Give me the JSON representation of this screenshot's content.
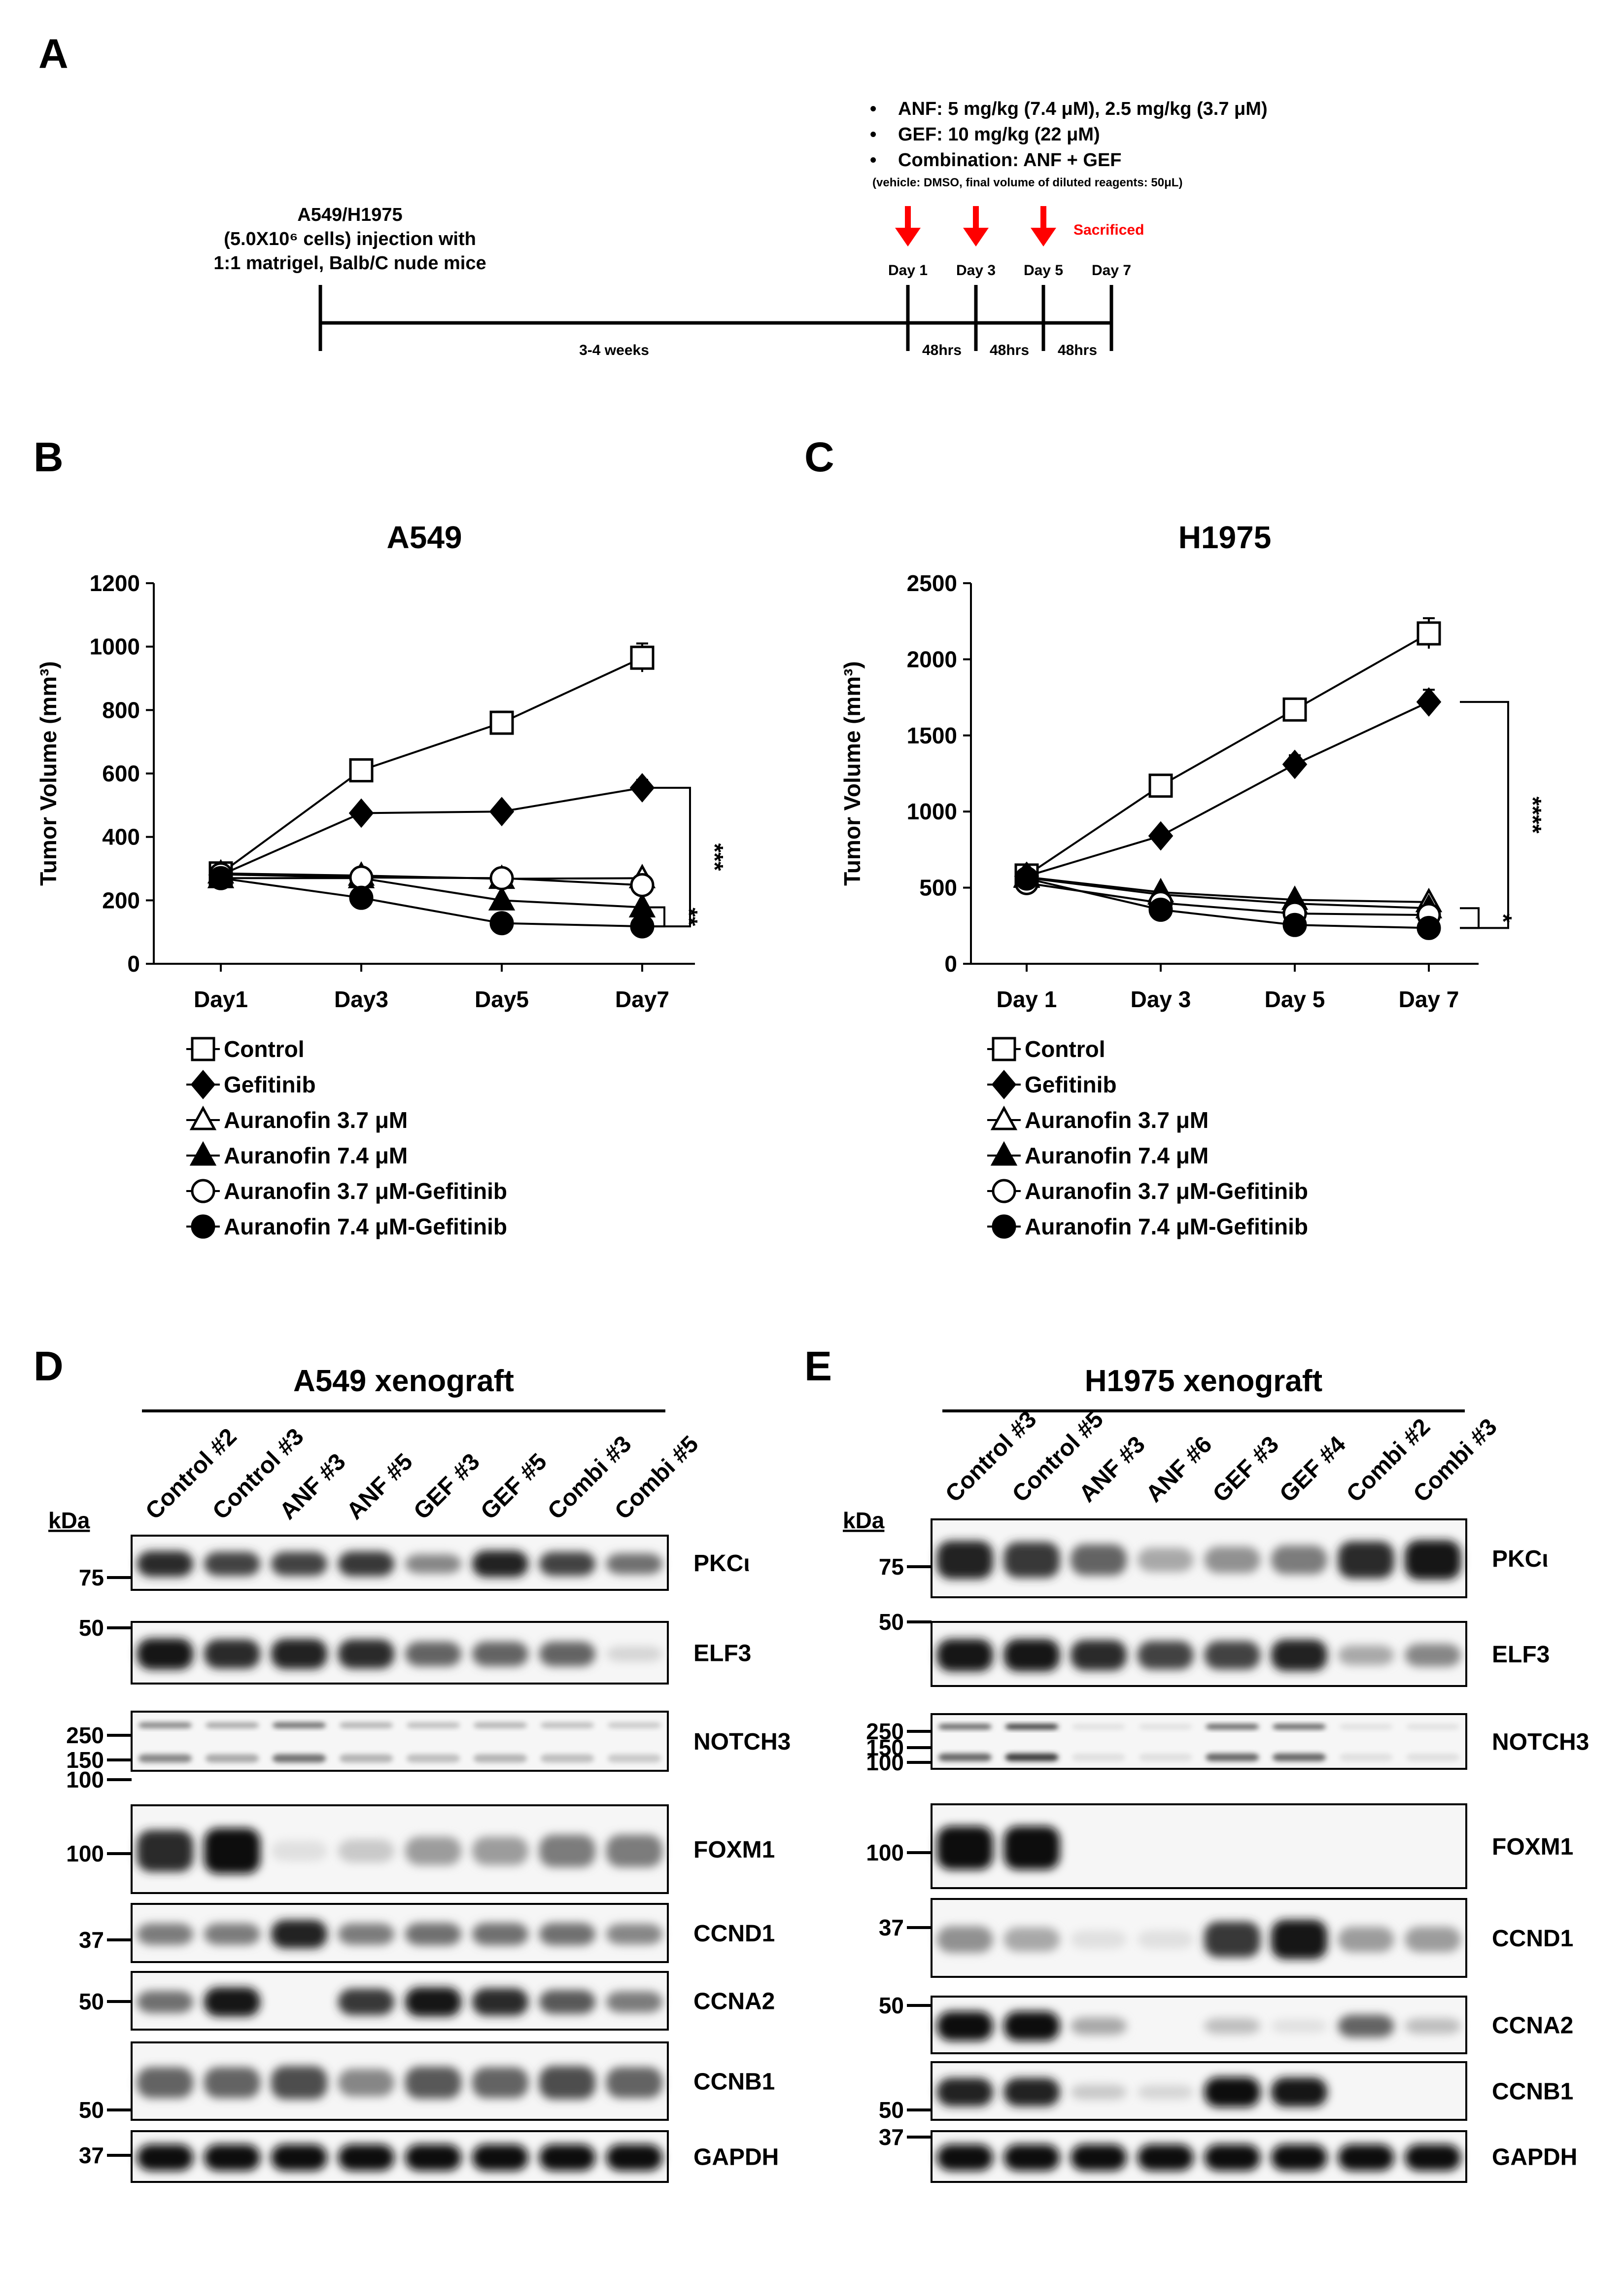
{
  "panel_a": {
    "letter": "A",
    "injection_lines": [
      "A549/H1975",
      "(5.0X10⁶ cells) injection with",
      "1:1 matrigel, Balb/C nude mice"
    ],
    "treatment_bullets": [
      "ANF: 5 mg/kg (7.4 μM), 2.5 mg/kg (3.7 μM)",
      "GEF: 10 mg/kg (22 μM)",
      "Combination: ANF + GEF"
    ],
    "vehicle_note": "(vehicle: DMSO, final volume of diluted reagents: 50μL)",
    "sacrificed": "Sacrificed",
    "days": [
      "Day 1",
      "Day 3",
      "Day 5",
      "Day 7"
    ],
    "weeks_label": "3-4 weeks",
    "interval_labels": [
      "48hrs",
      "48hrs",
      "48hrs"
    ],
    "colors": {
      "arrow": "#ff0000",
      "sacrificed": "#ff0000"
    }
  },
  "chart_data": [
    {
      "panel": "B",
      "type": "line",
      "title": "A549",
      "ylabel": "Tumor Volume (mm³)",
      "xlabel": "",
      "categories": [
        "Day1",
        "Day3",
        "Day5",
        "Day7"
      ],
      "ylim": [
        0,
        1200
      ],
      "yticks": [
        0,
        200,
        400,
        600,
        800,
        1000,
        1200
      ],
      "grid": false,
      "legend_position": "below",
      "series": [
        {
          "name": "Control",
          "values": [
            285,
            610,
            760,
            965
          ],
          "errors": [
            10,
            20,
            35,
            45
          ],
          "marker": "square-open"
        },
        {
          "name": "Gefitinib",
          "values": [
            280,
            475,
            480,
            555
          ],
          "errors": [
            10,
            15,
            15,
            25
          ],
          "marker": "diamond-filled"
        },
        {
          "name": "Auranofin 3.7 μM",
          "values": [
            285,
            278,
            268,
            270
          ],
          "errors": [
            8,
            8,
            8,
            10
          ],
          "marker": "triangle-open"
        },
        {
          "name": "Auranofin 7.4 μM",
          "values": [
            270,
            270,
            200,
            178
          ],
          "errors": [
            8,
            8,
            8,
            8
          ],
          "marker": "triangle-filled"
        },
        {
          "name": "Auranofin 3.7 μM-Gefitinib",
          "values": [
            282,
            272,
            270,
            248
          ],
          "errors": [
            8,
            8,
            8,
            8
          ],
          "marker": "circle-open"
        },
        {
          "name": "Auranofin 7.4 μM-Gefitinib",
          "values": [
            270,
            208,
            128,
            118
          ],
          "errors": [
            8,
            8,
            8,
            8
          ],
          "marker": "circle-filled"
        }
      ],
      "significance": [
        {
          "label": "***",
          "from_value": 555,
          "to_value": 118
        },
        {
          "label": "**",
          "from_value": 178,
          "to_value": 118
        }
      ]
    },
    {
      "panel": "C",
      "type": "line",
      "title": "H1975",
      "ylabel": "Tumor Volume (mm³)",
      "xlabel": "",
      "categories": [
        "Day 1",
        "Day 3",
        "Day 5",
        "Day 7"
      ],
      "ylim": [
        0,
        2500
      ],
      "yticks": [
        0,
        500,
        1000,
        1500,
        2000,
        2500
      ],
      "grid": false,
      "legend_position": "below",
      "series": [
        {
          "name": "Control",
          "values": [
            580,
            1170,
            1670,
            2170
          ],
          "errors": [
            20,
            30,
            60,
            100
          ],
          "marker": "square-open"
        },
        {
          "name": "Gefitinib",
          "values": [
            575,
            840,
            1310,
            1720
          ],
          "errors": [
            20,
            30,
            60,
            80
          ],
          "marker": "diamond-filled"
        },
        {
          "name": "Auranofin 3.7 μM",
          "values": [
            570,
            470,
            420,
            405
          ],
          "errors": [
            15,
            15,
            15,
            15
          ],
          "marker": "triangle-open"
        },
        {
          "name": "Auranofin 7.4 μM",
          "values": [
            565,
            455,
            395,
            365
          ],
          "errors": [
            15,
            15,
            15,
            15
          ],
          "marker": "triangle-filled"
        },
        {
          "name": "Auranofin 3.7 μM-Gefitinib",
          "values": [
            530,
            400,
            330,
            320
          ],
          "errors": [
            15,
            15,
            15,
            15
          ],
          "marker": "circle-open"
        },
        {
          "name": "Auranofin 7.4 μM-Gefitinib",
          "values": [
            560,
            355,
            255,
            235
          ],
          "errors": [
            15,
            15,
            15,
            15
          ],
          "marker": "circle-filled"
        }
      ],
      "significance": [
        {
          "label": "****",
          "from_value": 1720,
          "to_value": 235
        },
        {
          "label": "*",
          "from_value": 365,
          "to_value": 235
        }
      ]
    }
  ],
  "blot_d": {
    "letter": "D",
    "title": "A549 xenograft",
    "kda": "kDa",
    "lanes": [
      "Control #2",
      "Control #3",
      "ANF #3",
      "ANF #5",
      "GEF #3",
      "GEF #5",
      "Combi #3",
      "Combi #5"
    ],
    "rows": [
      {
        "protein": "PKCι",
        "markers": [
          "75"
        ],
        "intensity": [
          0.85,
          0.75,
          0.75,
          0.8,
          0.45,
          0.9,
          0.75,
          0.55
        ]
      },
      {
        "protein": "ELF3",
        "markers": [
          "50"
        ],
        "intensity": [
          0.95,
          0.85,
          0.9,
          0.85,
          0.6,
          0.6,
          0.6,
          0.1
        ]
      },
      {
        "protein": "NOTCH3",
        "markers": [
          "250",
          "150",
          "100"
        ],
        "intensity": [
          0.45,
          0.3,
          0.55,
          0.25,
          0.2,
          0.25,
          0.2,
          0.15
        ]
      },
      {
        "protein": "FOXM1",
        "markers": [
          "100"
        ],
        "intensity": [
          0.85,
          1.0,
          0.05,
          0.15,
          0.35,
          0.35,
          0.5,
          0.5
        ]
      },
      {
        "protein": "CCND1",
        "markers": [
          "37"
        ],
        "intensity": [
          0.5,
          0.5,
          0.9,
          0.5,
          0.55,
          0.55,
          0.55,
          0.45
        ]
      },
      {
        "protein": "CCNA2",
        "markers": [
          "50"
        ],
        "intensity": [
          0.55,
          0.95,
          0.0,
          0.8,
          0.95,
          0.85,
          0.65,
          0.5
        ]
      },
      {
        "protein": "CCNB1",
        "markers": [
          "50"
        ],
        "intensity": [
          0.6,
          0.6,
          0.7,
          0.45,
          0.65,
          0.6,
          0.7,
          0.6
        ]
      },
      {
        "protein": "GAPDH",
        "markers": [
          "37"
        ],
        "intensity": [
          1.0,
          1.0,
          1.0,
          1.0,
          1.0,
          1.0,
          1.0,
          1.0
        ]
      }
    ]
  },
  "blot_e": {
    "letter": "E",
    "title": "H1975 xenograft",
    "kda": "kDa",
    "lanes": [
      "Control #3",
      "Control #5",
      "ANF #3",
      "ANF #6",
      "GEF #3",
      "GEF #4",
      "Combi #2",
      "Combi #3"
    ],
    "rows": [
      {
        "protein": "PKCι",
        "markers": [
          "75"
        ],
        "intensity": [
          0.9,
          0.8,
          0.6,
          0.3,
          0.4,
          0.5,
          0.85,
          0.95
        ]
      },
      {
        "protein": "ELF3",
        "markers": [
          "50"
        ],
        "intensity": [
          0.95,
          0.95,
          0.85,
          0.75,
          0.75,
          0.9,
          0.3,
          0.45
        ]
      },
      {
        "protein": "NOTCH3",
        "markers": [
          "250",
          "150",
          "100"
        ],
        "intensity": [
          0.6,
          0.8,
          0.05,
          0.05,
          0.6,
          0.6,
          0.05,
          0.05
        ]
      },
      {
        "protein": "FOXM1",
        "markers": [
          "100"
        ],
        "intensity": [
          1.0,
          1.0,
          0.0,
          0.0,
          0.0,
          0.0,
          0.0,
          0.0
        ]
      },
      {
        "protein": "CCND1",
        "markers": [
          "37"
        ],
        "intensity": [
          0.4,
          0.3,
          0.05,
          0.05,
          0.8,
          0.95,
          0.35,
          0.35
        ]
      },
      {
        "protein": "CCNA2",
        "markers": [
          "50"
        ],
        "intensity": [
          1.0,
          1.0,
          0.3,
          0.0,
          0.2,
          0.05,
          0.6,
          0.2
        ]
      },
      {
        "protein": "CCNB1",
        "markers": [
          "50"
        ],
        "intensity": [
          0.9,
          0.9,
          0.15,
          0.1,
          1.0,
          0.95,
          0.0,
          0.0
        ]
      },
      {
        "protein": "GAPDH",
        "markers": [
          "37"
        ],
        "intensity": [
          1.0,
          1.0,
          1.0,
          1.0,
          1.0,
          1.0,
          1.0,
          1.0
        ]
      }
    ]
  }
}
